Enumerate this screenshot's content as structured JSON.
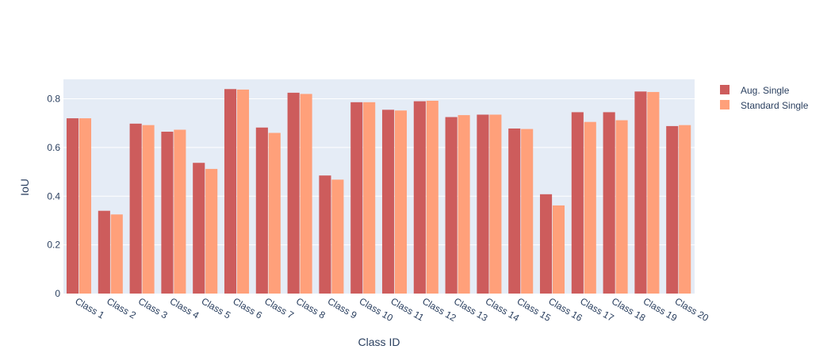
{
  "chart_data": {
    "type": "bar",
    "xlabel": "Class ID",
    "ylabel": "IoU",
    "ylim": [
      0,
      0.88
    ],
    "yticks": [
      0,
      0.2,
      0.4,
      0.6,
      0.8
    ],
    "ytick_labels": [
      "0",
      "0.2",
      "0.4",
      "0.6",
      "0.8"
    ],
    "grid": true,
    "legend_position": "top-right",
    "categories": [
      "Class 1",
      "Class 2",
      "Class 3",
      "Class 4",
      "Class 5",
      "Class 6",
      "Class 7",
      "Class 8",
      "Class 9",
      "Class 10",
      "Class 11",
      "Class 12",
      "Class 13",
      "Class 14",
      "Class 15",
      "Class 16",
      "Class 17",
      "Class 18",
      "Class 19",
      "Class 20"
    ],
    "series": [
      {
        "name": "Aug. Single",
        "color": "#cd5c5c",
        "values": [
          0.72,
          0.34,
          0.698,
          0.665,
          0.537,
          0.84,
          0.682,
          0.825,
          0.485,
          0.786,
          0.755,
          0.79,
          0.725,
          0.735,
          0.678,
          0.408,
          0.745,
          0.745,
          0.83,
          0.688
        ]
      },
      {
        "name": "Standard Single",
        "color": "#ffa07a",
        "values": [
          0.72,
          0.325,
          0.692,
          0.673,
          0.512,
          0.838,
          0.66,
          0.82,
          0.468,
          0.786,
          0.752,
          0.792,
          0.733,
          0.735,
          0.676,
          0.362,
          0.705,
          0.712,
          0.828,
          0.692
        ]
      }
    ]
  }
}
